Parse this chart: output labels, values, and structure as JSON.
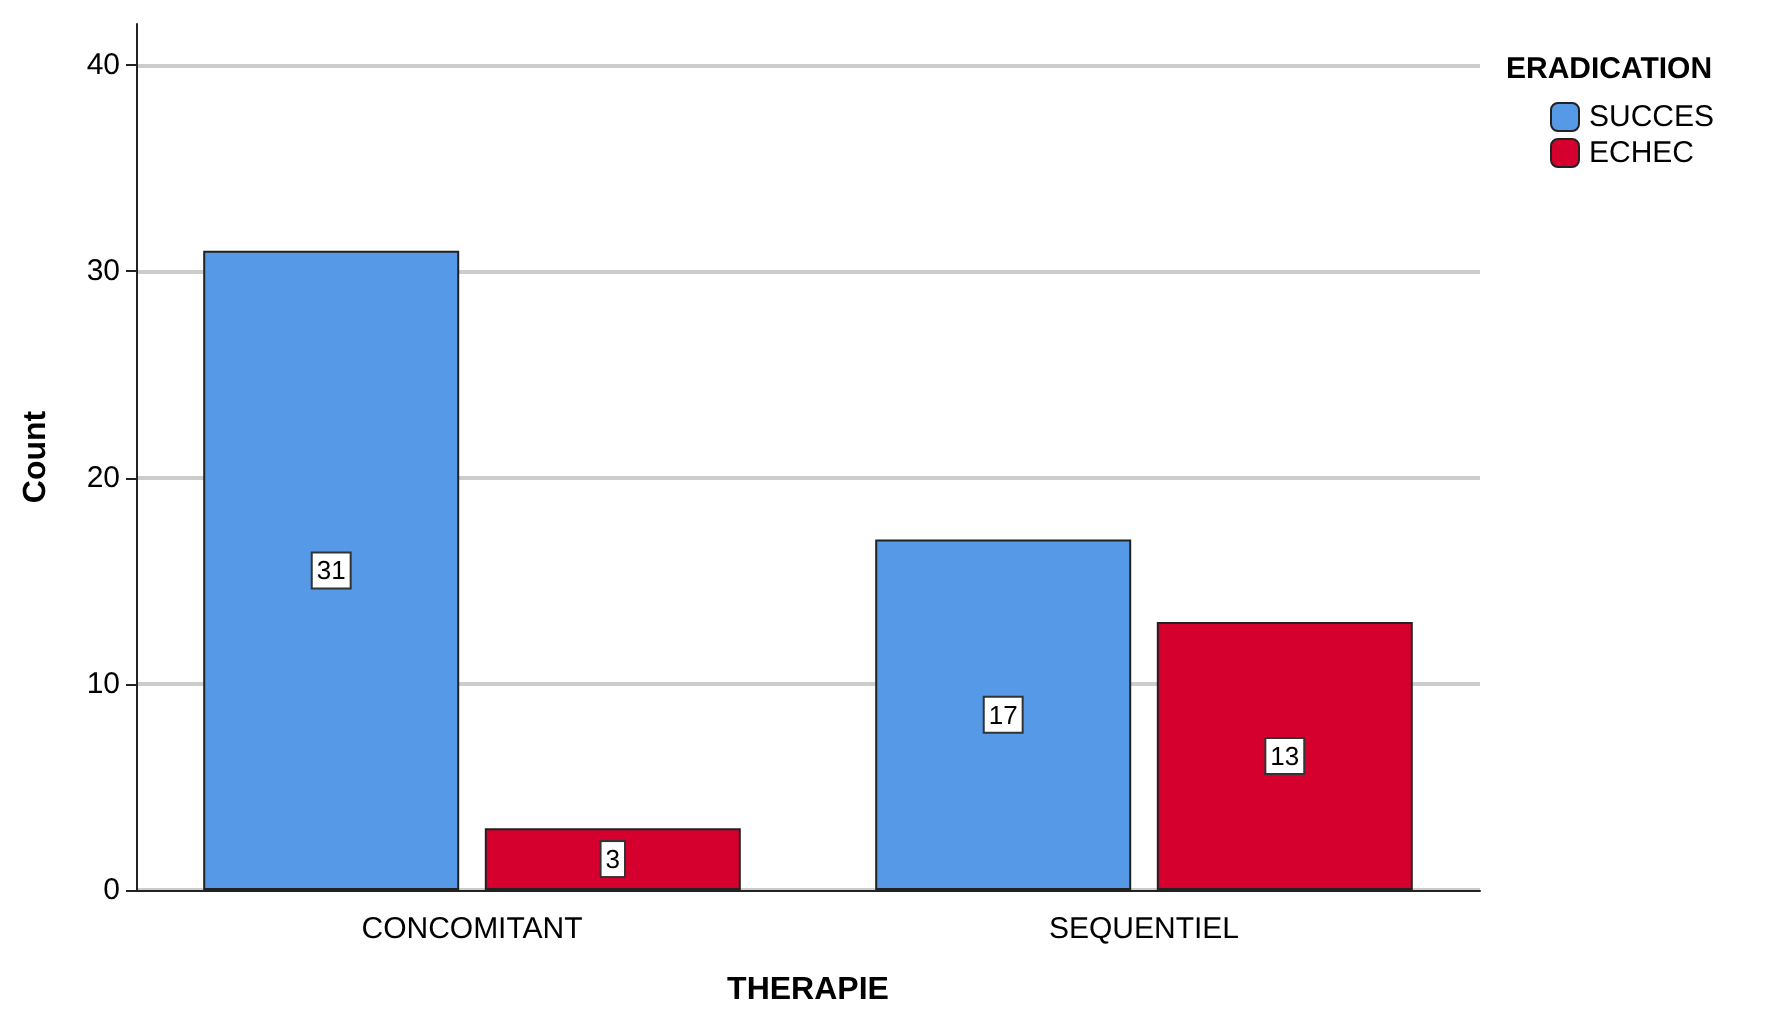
{
  "chart_data": {
    "type": "bar",
    "xlabel": "THERAPIE",
    "ylabel": "Count",
    "legend_title": "ERADICATION",
    "categories": [
      "CONCOMITANT",
      "SEQUENTIEL"
    ],
    "series": [
      {
        "name": "SUCCES",
        "color": "#5699e6",
        "values": [
          31,
          17
        ]
      },
      {
        "name": "ECHEC",
        "color": "#d6002f",
        "values": [
          3,
          13
        ]
      }
    ],
    "ylim": [
      0,
      42
    ],
    "yticks": [
      0,
      10,
      20,
      30,
      40
    ],
    "grid": "y",
    "legend": "top right",
    "data_labels": true
  }
}
